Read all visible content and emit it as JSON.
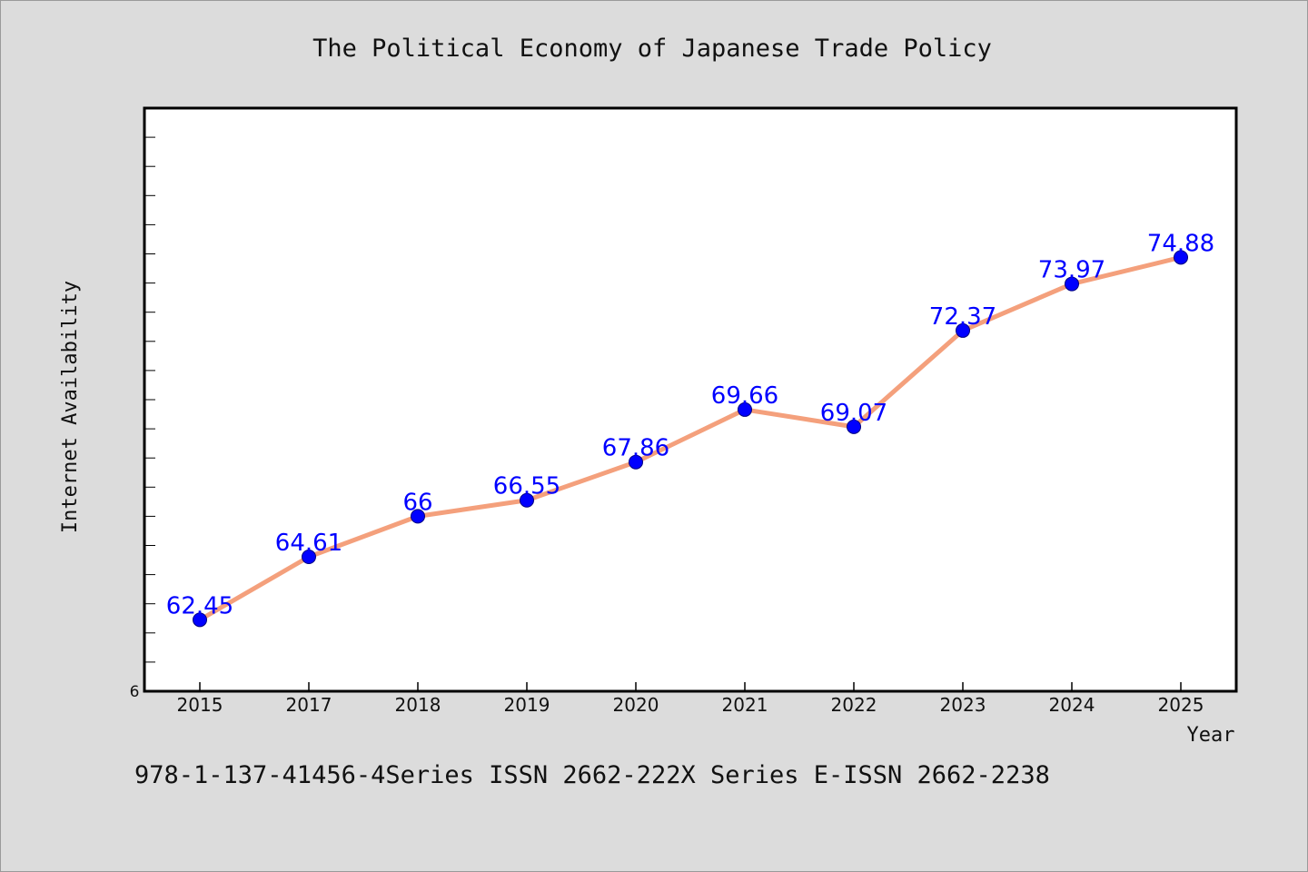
{
  "chart_data": {
    "type": "line",
    "title": "The Political Economy of Japanese Trade Policy",
    "xlabel": "Year",
    "ylabel": "Internet Availability",
    "categories": [
      "2015",
      "2017",
      "2018",
      "2019",
      "2020",
      "2021",
      "2022",
      "2023",
      "2024",
      "2025"
    ],
    "series": [
      {
        "values": [
          62.45,
          64.61,
          66,
          66.55,
          67.86,
          69.66,
          69.07,
          72.37,
          73.97,
          74.88
        ],
        "data_labels": [
          "62.45",
          "64.61",
          "66",
          "66.55",
          "67.86",
          "69.66",
          "69.07",
          "72.37",
          "73.97",
          "74.88"
        ]
      }
    ],
    "y_tick_labels": [
      "6"
    ],
    "ylim": [
      60,
      80
    ],
    "grid": false,
    "colors": {
      "line": "#f4a07c",
      "marker": "#0000ff",
      "marker_edge": "#000080",
      "data_label": "#0000ff",
      "plot_bg": "#ffffff",
      "page_bg": "#dcdcdc"
    }
  },
  "footer": {
    "text": "978-1-137-41456-4Series ISSN 2662-222X Series E-ISSN 2662-2238"
  }
}
